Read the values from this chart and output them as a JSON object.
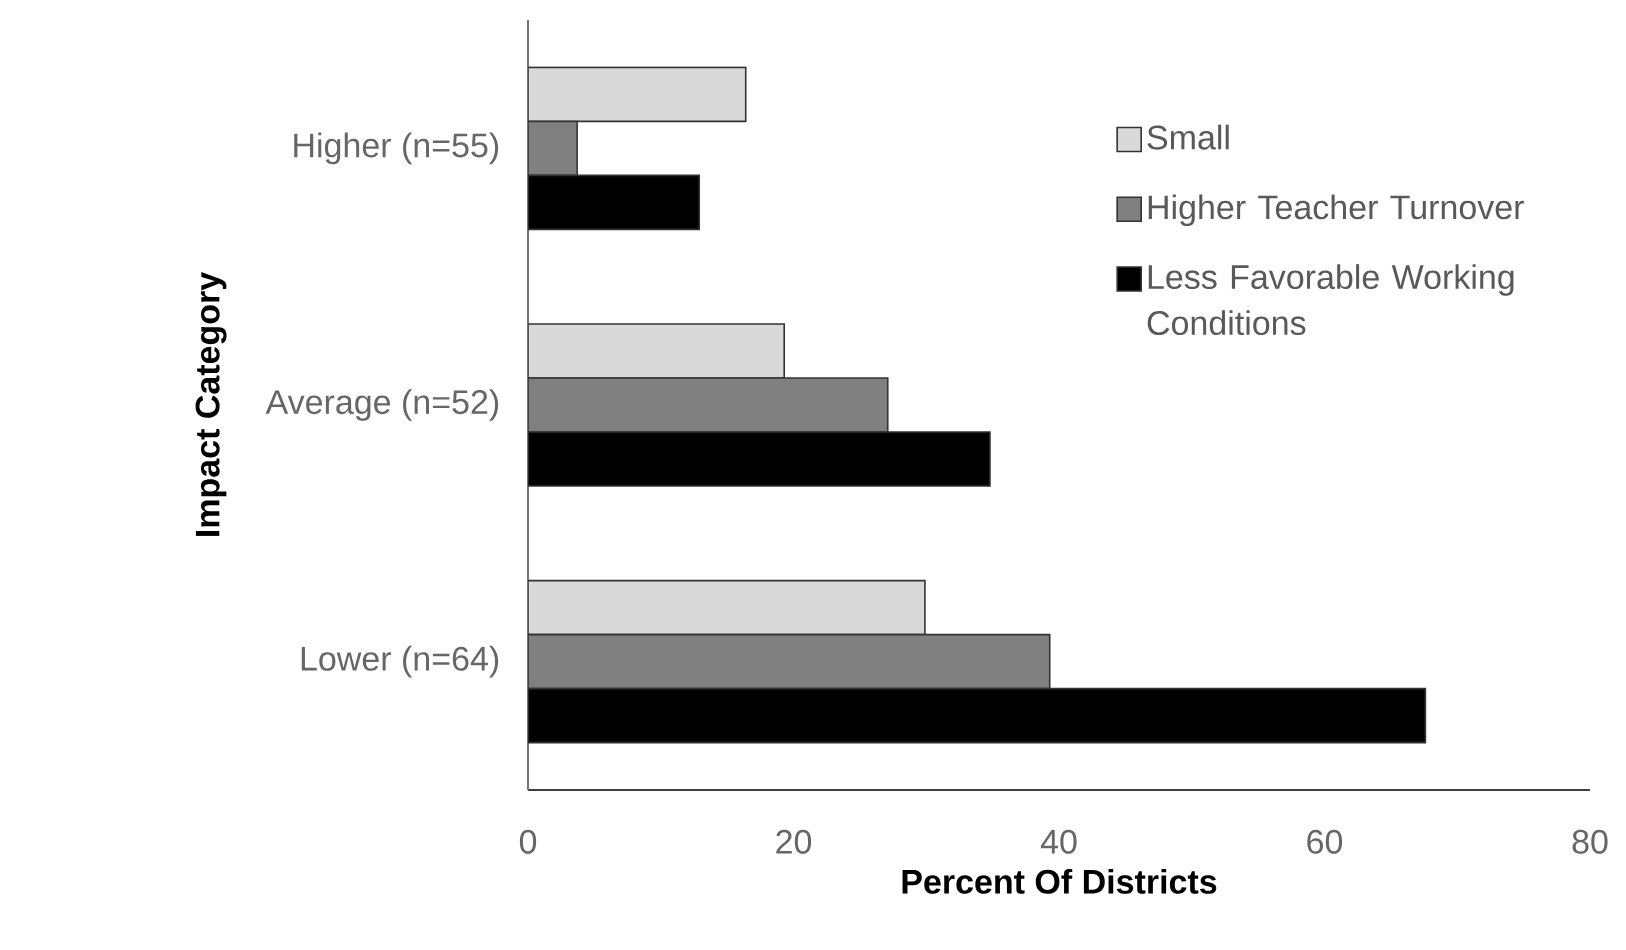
{
  "chart_data": {
    "type": "bar",
    "orientation": "horizontal",
    "xlabel": "Percent Of Districts",
    "ylabel": "Impact Category",
    "categories": [
      "Higher  (n=55)",
      "Average (n=52)",
      "Lower (n=64)"
    ],
    "series": [
      {
        "name": "Small",
        "color": "#d9d9d9",
        "values": [
          16.4,
          19.3,
          29.9
        ]
      },
      {
        "name": "Higher Teacher Turnover",
        "color": "#808080",
        "values": [
          3.7,
          27.1,
          39.3
        ]
      },
      {
        "name": "Less Favorable Working Conditions",
        "color": "#000000",
        "values": [
          12.9,
          34.8,
          67.6
        ]
      }
    ],
    "xlim": [
      0,
      80
    ],
    "xticks": [
      0,
      20,
      40,
      60,
      80
    ],
    "grid": false,
    "legend": "right"
  }
}
